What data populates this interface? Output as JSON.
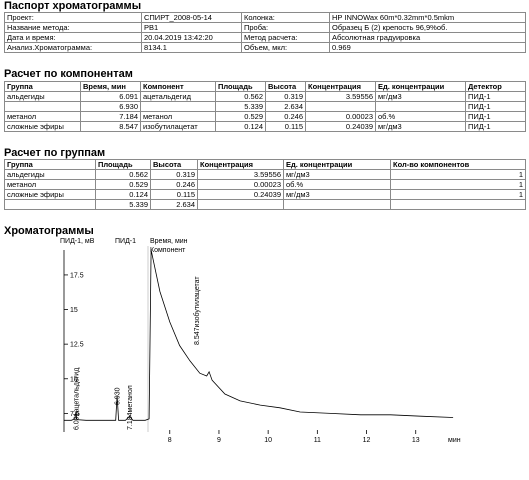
{
  "passport": {
    "title": "Паспорт хроматограммы",
    "rows": [
      [
        "Проект:",
        "СПИРТ_2008-05-14",
        "Колонка:",
        "HP INNOWax 60m*0.32mm*0.5mkm"
      ],
      [
        "Название метода:",
        "РВ1",
        "Проба:",
        "Образец Б (2) крепость 96,9%об."
      ],
      [
        "Дата и время:",
        "20.04.2019 13:42:20",
        "Метод расчета:",
        "Абсолютная градуировка"
      ],
      [
        "Анализ.Хроматограмма:",
        "8134.1",
        "Объем, мкл:",
        "0.969"
      ]
    ]
  },
  "components": {
    "title": "Расчет по компонентам",
    "header": [
      "Группа",
      "Время, мин",
      "Компонент",
      "Площадь",
      "Высота",
      "Концентрация",
      "Ед. концентрации",
      "Детектор"
    ],
    "rows": [
      [
        "альдегиды",
        "6.091",
        "ацетальдегид",
        "0.562",
        "0.319",
        "3.59556",
        "мг/дм3",
        "ПИД-1"
      ],
      [
        null,
        "6.930",
        null,
        "5.339",
        "2.634",
        null,
        null,
        "ПИД-1"
      ],
      [
        "метанол",
        "7.184",
        "метанол",
        "0.529",
        "0.246",
        "0.00023",
        "об.%",
        "ПИД-1"
      ],
      [
        "сложные эфиры",
        "8.547",
        "изобутилацетат",
        "0.124",
        "0.115",
        "0.24039",
        "мг/дм3",
        "ПИД-1"
      ]
    ]
  },
  "groups": {
    "title": "Расчет по группам",
    "header": [
      "Группа",
      "Площадь",
      "Высота",
      "Концентрация",
      "Ед. концентрации",
      "Кол-во компонентов"
    ],
    "rows": [
      [
        "альдегиды",
        "0.562",
        "0.319",
        "3.59556",
        "мг/дм3",
        "1"
      ],
      [
        "метанол",
        "0.529",
        "0.246",
        "0.00023",
        "об.%",
        "1"
      ],
      [
        "сложные эфиры",
        "0.124",
        "0.115",
        "0.24039",
        "мг/дм3",
        "1"
      ],
      [
        null,
        "5.339",
        "2.634",
        null,
        null,
        null
      ]
    ]
  },
  "chromatogram": {
    "title": "Хроматограммы",
    "y_label": "ПИД-1, мВ",
    "detector": "ПИД-1",
    "time_label": "Время, мин",
    "component_label": "Компонент",
    "x_unit": "мин",
    "xlim": [
      5.85,
      13.9
    ],
    "ylim": [
      6.3,
      19.3
    ],
    "xticks": [
      8,
      9,
      10,
      11,
      12,
      13
    ],
    "yticks": [
      7.5,
      10,
      12.5,
      15,
      17.5
    ],
    "x": [
      5.85,
      6.0,
      6.07,
      6.091,
      6.11,
      6.3,
      6.6,
      6.9,
      6.93,
      6.96,
      7.1,
      7.184,
      7.25,
      7.5,
      7.58,
      7.62,
      7.8,
      8.0,
      8.2,
      8.41,
      8.61,
      8.75,
      8.8,
      8.86,
      9.12,
      9.43,
      9.84,
      10.24,
      10.65,
      11.27,
      11.88,
      12.49,
      13.1,
      13.76
    ],
    "values": [
      7.0,
      7.0,
      7.1,
      7.6,
      7.05,
      7.0,
      7.0,
      7.0,
      8.8,
      7.0,
      7.0,
      7.3,
      7.0,
      7.0,
      7.1,
      19.3,
      16.3,
      14.1,
      12.4,
      11.3,
      10.4,
      10.2,
      10.5,
      9.9,
      8.9,
      8.4,
      8.1,
      7.9,
      7.6,
      7.5,
      7.4,
      7.4,
      7.3,
      7.2
    ]
  }
}
